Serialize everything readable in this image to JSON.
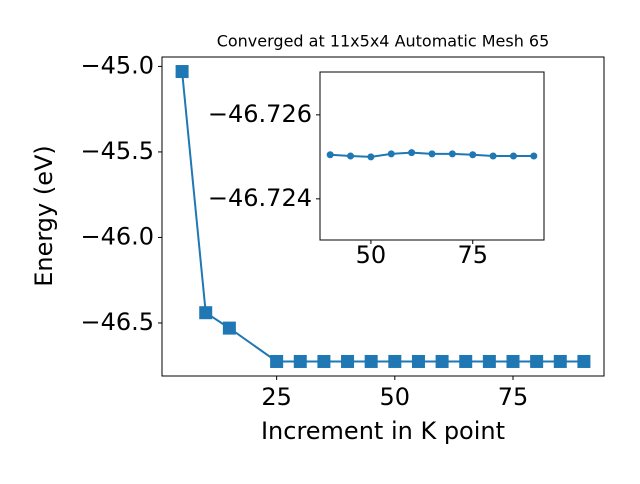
{
  "chart_data": [
    {
      "type": "line",
      "title": "Converged at 11x5x4 Automatic Mesh 65",
      "x_label": "Increment in K point",
      "y_label": "Energy (eV)",
      "x": [
        5,
        10,
        15,
        25,
        30,
        35,
        40,
        45,
        50,
        55,
        60,
        65,
        70,
        75,
        80,
        85,
        90
      ],
      "values": [
        -45.03,
        -46.44,
        -46.53,
        -46.7251,
        -46.7251,
        -46.7251,
        -46.72505,
        -46.72502,
        -46.725,
        -46.72507,
        -46.7251,
        -46.72507,
        -46.72507,
        -46.72505,
        -46.72502,
        -46.72502,
        -46.72502
      ],
      "color": "#1f77b4",
      "marker": "square",
      "xlim": [
        0.75,
        94.25
      ],
      "ylim": [
        -46.81,
        -44.945
      ],
      "xticks": [
        25,
        50,
        75
      ],
      "yticks": [
        {
          "value": -45.0,
          "label": "−45.0"
        },
        {
          "value": -45.5,
          "label": "−45.5"
        },
        {
          "value": -46.0,
          "label": "−46.0"
        },
        {
          "value": -46.5,
          "label": "−46.5"
        }
      ]
    },
    {
      "type": "line",
      "x": [
        40,
        45,
        50,
        55,
        60,
        65,
        70,
        75,
        80,
        85,
        90
      ],
      "values": [
        -46.72505,
        -46.72502,
        -46.725,
        -46.72507,
        -46.7251,
        -46.72507,
        -46.72507,
        -46.72505,
        -46.72502,
        -46.72502,
        -46.72502
      ],
      "color": "#1f77b4",
      "marker": "circle",
      "xlim": [
        37.5,
        92.5
      ],
      "ylim": [
        -46.72302,
        -46.72702
      ],
      "xticks": [
        50,
        75
      ],
      "yticks": [
        {
          "value": -46.726,
          "label": "−46.726"
        },
        {
          "value": -46.724,
          "label": "−46.724"
        }
      ]
    }
  ]
}
